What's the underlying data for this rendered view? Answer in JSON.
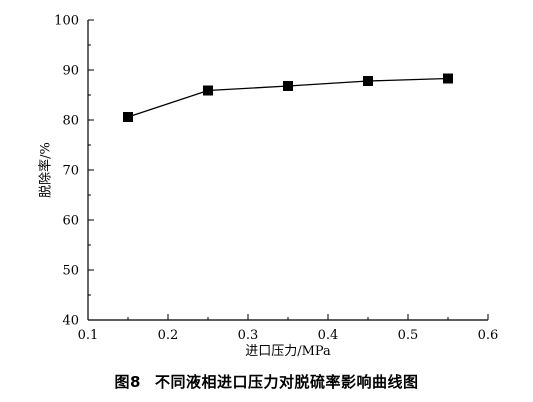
{
  "figure": {
    "number": "图8",
    "caption": "不同液相进口压力对脱硫率影响曲线图"
  },
  "chart_data": {
    "type": "line",
    "title": "",
    "xlabel": "进口压力/MPa",
    "ylabel": "脱除率/%",
    "xlim": [
      0.1,
      0.6
    ],
    "ylim": [
      40,
      100
    ],
    "x_ticks": [
      0.1,
      0.2,
      0.3,
      0.4,
      0.5,
      0.6
    ],
    "x_tick_labels": [
      "0.1",
      "0.2",
      "0.3",
      "0.4",
      "0.5",
      "0.6"
    ],
    "y_ticks": [
      40,
      50,
      60,
      70,
      80,
      90,
      100
    ],
    "y_tick_labels": [
      "40",
      "50",
      "60",
      "70",
      "80",
      "90",
      "100"
    ],
    "grid": false,
    "legend": "none",
    "marker": "square",
    "line_color": "#000000",
    "series": [
      {
        "x": [
          0.15,
          0.25,
          0.35,
          0.45,
          0.55
        ],
        "y": [
          80.6,
          85.9,
          86.8,
          87.8,
          88.3
        ]
      }
    ]
  }
}
